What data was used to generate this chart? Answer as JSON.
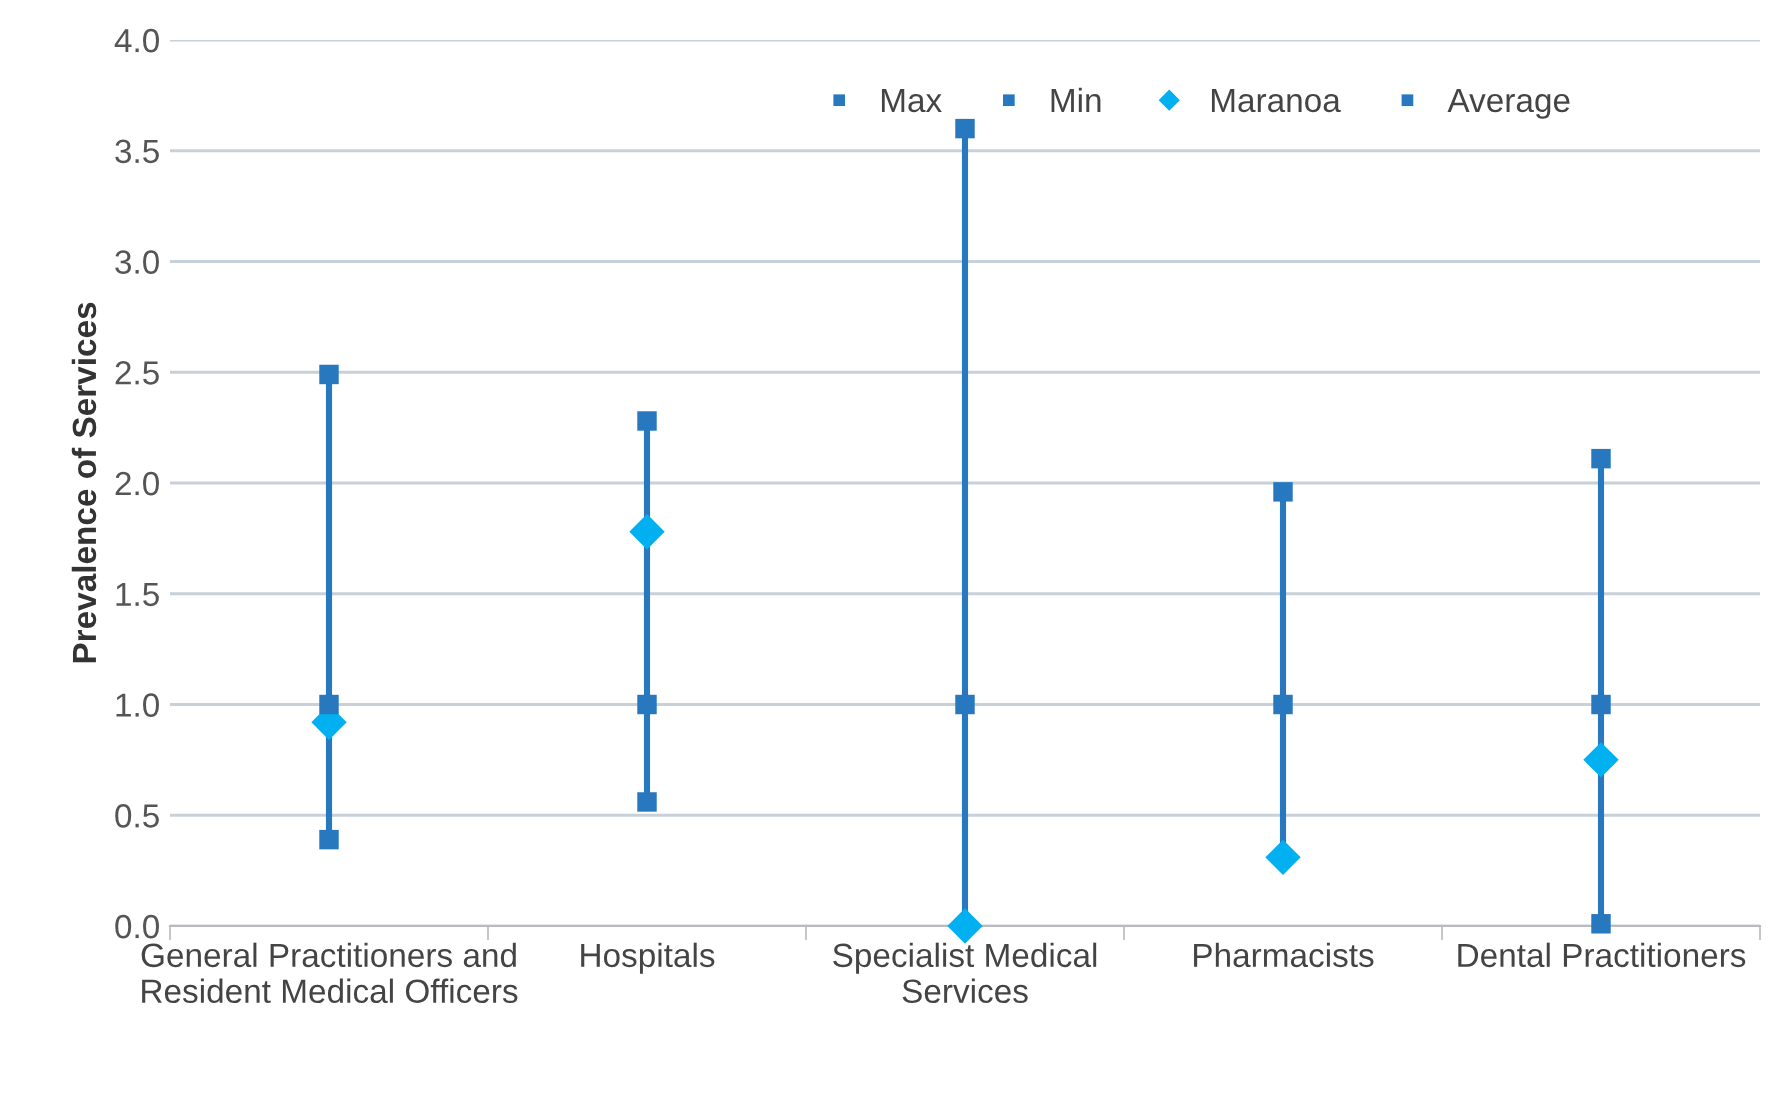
{
  "chart_data": {
    "type": "scatter",
    "ylabel": "Prevalence of Services",
    "categories": [
      "General Practitioners and Resident Medical Officers",
      "Hospitals",
      "Specialist Medical Services",
      "Pharmacists",
      "Dental Practitioners"
    ],
    "series": [
      {
        "name": "Max",
        "color": "#2878c0",
        "marker": "square",
        "values": [
          2.49,
          2.28,
          3.6,
          1.96,
          2.11
        ]
      },
      {
        "name": "Min",
        "color": "#2878c0",
        "marker": "square",
        "values": [
          0.39,
          0.56,
          null,
          null,
          0.01
        ]
      },
      {
        "name": "Maranoa",
        "color": "#00b0f0",
        "marker": "diamond",
        "values": [
          0.92,
          1.78,
          0.0,
          0.31,
          0.75
        ]
      },
      {
        "name": "Average",
        "color": "#2878c0",
        "marker": "square",
        "values": [
          1.0,
          1.0,
          1.0,
          1.0,
          1.0
        ]
      }
    ],
    "ylim": [
      0,
      4
    ],
    "yticks": [
      {
        "value": 0,
        "label": "0.0"
      },
      {
        "value": 0.5,
        "label": "0.5"
      },
      {
        "value": 1,
        "label": "1.0"
      },
      {
        "value": 1.5,
        "label": "1.5"
      },
      {
        "value": 2,
        "label": "2.0"
      },
      {
        "value": 2.5,
        "label": "2.5"
      },
      {
        "value": 3,
        "label": "3.0"
      },
      {
        "value": 3.5,
        "label": "3.5"
      },
      {
        "value": 4,
        "label": "4.0"
      }
    ],
    "grid": "y",
    "legend": "top right"
  }
}
